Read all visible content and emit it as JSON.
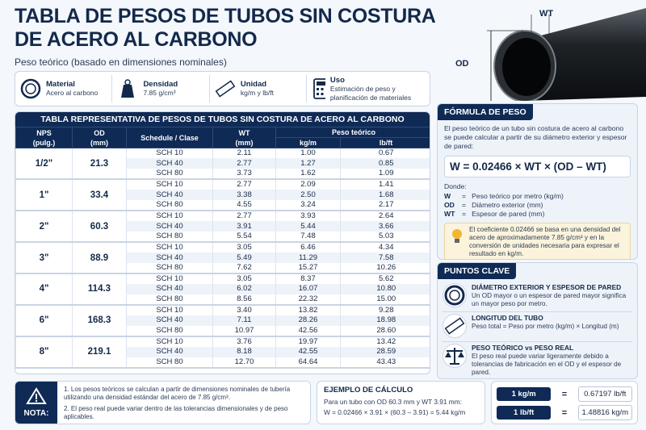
{
  "header": {
    "title_line1": "TABLA DE PESOS DE TUBOS SIN COSTURA",
    "title_line2": "DE ACERO AL CARBONO",
    "subtitle": "Peso teórico (basado en dimensiones nominales)"
  },
  "image": {
    "wt": "WT",
    "od": "OD"
  },
  "info": [
    {
      "label": "Material",
      "text": "Acero al carbono"
    },
    {
      "label": "Densidad",
      "text": "7.85 g/cm³"
    },
    {
      "label": "Unidad",
      "text": "kg/m y lb/ft"
    },
    {
      "label": "Uso",
      "text": "Estimación de peso y planificación de materiales"
    }
  ],
  "table": {
    "title": "TABLA REPRESENTATIVA DE PESOS DE TUBOS SIN COSTURA DE ACERO AL CARBONO",
    "headers": {
      "nps": "NPS",
      "nps_unit": "(pulg.)",
      "od": "OD",
      "od_unit": "(mm)",
      "schedule": "Schedule / Clase",
      "wt": "WT",
      "wt_unit": "(mm)",
      "weight": "Peso teórico",
      "kgm": "kg/m",
      "lbft": "lb/ft"
    },
    "groups": [
      {
        "nps": "1/2\"",
        "od": "21.3",
        "rows": [
          [
            "SCH 10",
            "2.11",
            "1.00",
            "0.67"
          ],
          [
            "SCH 40",
            "2.77",
            "1.27",
            "0.85"
          ],
          [
            "SCH 80",
            "3.73",
            "1.62",
            "1.09"
          ]
        ]
      },
      {
        "nps": "1\"",
        "od": "33.4",
        "rows": [
          [
            "SCH 10",
            "2.77",
            "2.09",
            "1.41"
          ],
          [
            "SCH 40",
            "3.38",
            "2.50",
            "1.68"
          ],
          [
            "SCH 80",
            "4.55",
            "3.24",
            "2.17"
          ]
        ]
      },
      {
        "nps": "2\"",
        "od": "60.3",
        "rows": [
          [
            "SCH 10",
            "2.77",
            "3.93",
            "2.64"
          ],
          [
            "SCH 40",
            "3.91",
            "5.44",
            "3.66"
          ],
          [
            "SCH 80",
            "5.54",
            "7.48",
            "5.03"
          ]
        ]
      },
      {
        "nps": "3\"",
        "od": "88.9",
        "rows": [
          [
            "SCH 10",
            "3.05",
            "6.46",
            "4.34"
          ],
          [
            "SCH 40",
            "5.49",
            "11.29",
            "7.58"
          ],
          [
            "SCH 80",
            "7.62",
            "15.27",
            "10.26"
          ]
        ]
      },
      {
        "nps": "4\"",
        "od": "114.3",
        "rows": [
          [
            "SCH 10",
            "3.05",
            "8.37",
            "5.62"
          ],
          [
            "SCH 40",
            "6.02",
            "16.07",
            "10.80"
          ],
          [
            "SCH 80",
            "8.56",
            "22.32",
            "15.00"
          ]
        ]
      },
      {
        "nps": "6\"",
        "od": "168.3",
        "rows": [
          [
            "SCH 10",
            "3.40",
            "13.82",
            "9.28"
          ],
          [
            "SCH 40",
            "7.11",
            "28.26",
            "18.98"
          ],
          [
            "SCH 80",
            "10.97",
            "42.56",
            "28.60"
          ]
        ]
      },
      {
        "nps": "8\"",
        "od": "219.1",
        "rows": [
          [
            "SCH 10",
            "3.76",
            "19.97",
            "13.42"
          ],
          [
            "SCH 40",
            "8.18",
            "42.55",
            "28.59"
          ],
          [
            "SCH 80",
            "12.70",
            "64.64",
            "43.43"
          ]
        ]
      }
    ]
  },
  "formula": {
    "title": "FÓRMULA DE PESO",
    "intro": "El peso teórico de un tubo sin costura de acero al carbono se puede calcular a partir de su diámetro exterior y espesor de pared:",
    "equation": "W = 0.02466 × WT × (OD – WT)",
    "donde": "Donde:",
    "definitions": [
      {
        "sym": "W",
        "text": "=   Peso teórico por metro (kg/m)"
      },
      {
        "sym": "OD",
        "text": "=   Diámetro exterior (mm)"
      },
      {
        "sym": "WT",
        "text": "=   Espesor de pared (mm)"
      }
    ],
    "note": "El coeficiente 0.02466 se basa en una densidad del acero de aproximadamente 7.85 g/cm³ y en la conversión de unidades necesaria para expresar el resultado en kg/m."
  },
  "key_points": {
    "title": "PUNTOS CLAVE",
    "items": [
      {
        "title": "DIÁMETRO EXTERIOR Y ESPESOR DE PARED",
        "text": "Un OD mayor o un espesor de pared mayor significa un mayor peso por metro."
      },
      {
        "title": "LONGITUD DEL TUBO",
        "text": "Peso total = Peso por metro (kg/m) × Longitud (m)"
      },
      {
        "title": "PESO TEÓRICO vs PESO REAL",
        "text": "El peso real puede variar ligeramente debido a tolerancias de fabricación en el OD y el espesor de pared."
      }
    ]
  },
  "note": {
    "label": "NOTA:",
    "items": [
      "1. Los pesos teóricos se calculan a partir de dimensiones nominales de tubería utilizando una densidad estándar del acero de 7.85 g/cm³.",
      "2. El peso real puede variar dentro de las tolerancias dimensionales y de peso aplicables."
    ]
  },
  "example": {
    "title": "EJEMPLO DE CÁLCULO",
    "lines": [
      "Para un tubo con OD 60.3 mm y WT 3.91 mm:",
      "W = 0.02466 × 3.91 × (60.3 – 3.91) = 5.44 kg/m"
    ]
  },
  "conversions": [
    {
      "from": "1 kg/m",
      "eq": "=",
      "to": "0.67197 lb/ft"
    },
    {
      "from": "1 lb/ft",
      "eq": "=",
      "to": "1.48816 kg/m"
    }
  ]
}
